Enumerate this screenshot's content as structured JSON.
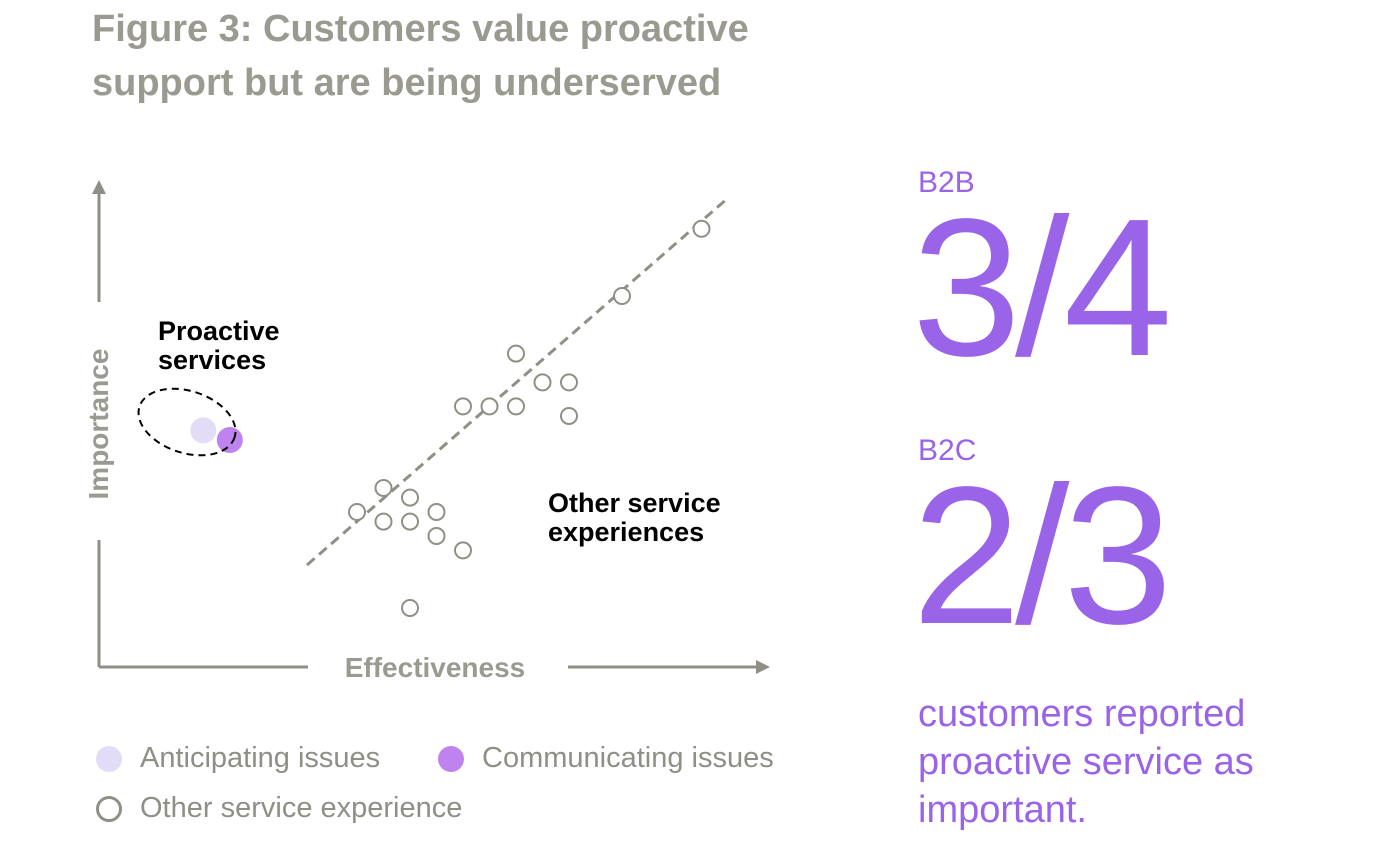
{
  "title": "Figure 3: Customers value proactive support but are being underserved",
  "chart_data": {
    "type": "scatter",
    "xlabel": "Effectiveness",
    "ylabel": "Importance",
    "xlim": [
      0,
      100
    ],
    "ylim": [
      0,
      100
    ],
    "grid": false,
    "trendline": true,
    "series": [
      {
        "name": "Anticipating issues",
        "points": [
          [
            11,
            52
          ]
        ],
        "color": "#e3dcf7",
        "filled": true
      },
      {
        "name": "Communicating issues",
        "points": [
          [
            16,
            50
          ]
        ],
        "color": "#bf83f0",
        "filled": true
      },
      {
        "name": "Other service experience",
        "points": [
          [
            40,
            35
          ],
          [
            45,
            40
          ],
          [
            50,
            38
          ],
          [
            55,
            35
          ],
          [
            50,
            33
          ],
          [
            45,
            33
          ],
          [
            55,
            30
          ],
          [
            60,
            27
          ],
          [
            50,
            15
          ],
          [
            60,
            57
          ],
          [
            65,
            57
          ],
          [
            70,
            57
          ],
          [
            75,
            62
          ],
          [
            70,
            68
          ],
          [
            80,
            62
          ],
          [
            80,
            55
          ],
          [
            90,
            80
          ],
          [
            105,
            94
          ]
        ],
        "color": "#8f8f86",
        "filled": false
      }
    ],
    "annotations": [
      {
        "text": "Proactive services",
        "lines": [
          "Proactive",
          "services"
        ]
      },
      {
        "text": "Other service experiences",
        "lines": [
          "Other service",
          "experiences"
        ]
      }
    ]
  },
  "legend": {
    "items": [
      {
        "label": "Anticipating issues"
      },
      {
        "label": "Communicating issues"
      },
      {
        "label": "Other service experience"
      }
    ]
  },
  "stats": {
    "b2b": {
      "label": "B2B",
      "value": "3/4"
    },
    "b2c": {
      "label": "B2C",
      "value": "2/3"
    },
    "caption": "customers reported proactive service as important."
  }
}
